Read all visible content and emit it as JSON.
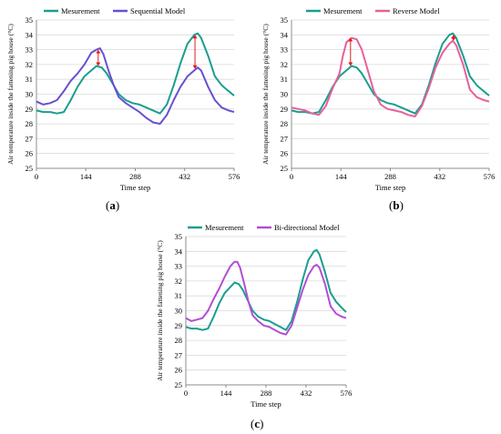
{
  "chart_data": [
    {
      "panel": "(a)",
      "type": "line",
      "ylabel": "Air temperature inside the fattening pig house (°C)",
      "xlabel": "Time step",
      "xticks": [
        0,
        144,
        288,
        432,
        576
      ],
      "yticks": [
        25,
        26,
        27,
        28,
        29,
        30,
        31,
        32,
        33,
        34,
        35
      ],
      "xlim": [
        0,
        576
      ],
      "ylim": [
        25,
        35
      ],
      "grid": "horizontal",
      "legend_position": "top",
      "series": [
        {
          "name": "Mesurement",
          "color": "#1a9e8f",
          "x": [
            0,
            20,
            40,
            60,
            80,
            100,
            120,
            140,
            160,
            175,
            190,
            205,
            220,
            240,
            260,
            280,
            300,
            320,
            340,
            360,
            380,
            400,
            420,
            440,
            460,
            470,
            480,
            500,
            520,
            540,
            560,
            576
          ],
          "y": [
            28.9,
            28.8,
            28.8,
            28.7,
            28.8,
            29.6,
            30.5,
            31.2,
            31.6,
            31.9,
            31.8,
            31.4,
            30.8,
            30.0,
            29.6,
            29.4,
            29.3,
            29.1,
            28.9,
            28.7,
            29.3,
            30.6,
            32.1,
            33.4,
            34.0,
            34.1,
            33.8,
            32.6,
            31.2,
            30.6,
            30.2,
            29.9
          ]
        },
        {
          "name": "Sequential Model",
          "color": "#6a4fd1",
          "x": [
            0,
            20,
            40,
            60,
            80,
            100,
            120,
            140,
            160,
            175,
            185,
            195,
            210,
            225,
            240,
            260,
            280,
            300,
            320,
            340,
            360,
            380,
            400,
            420,
            440,
            460,
            470,
            480,
            500,
            520,
            540,
            560,
            576
          ],
          "y": [
            29.5,
            29.3,
            29.4,
            29.6,
            30.2,
            30.9,
            31.4,
            32.0,
            32.8,
            33.0,
            33.1,
            32.7,
            31.6,
            30.6,
            29.8,
            29.4,
            29.1,
            28.8,
            28.4,
            28.1,
            28.0,
            28.6,
            29.6,
            30.5,
            31.2,
            31.6,
            31.8,
            31.6,
            30.5,
            29.6,
            29.1,
            28.9,
            28.8
          ]
        }
      ]
    },
    {
      "panel": "(b)",
      "type": "line",
      "ylabel": "Air temperature inside the fattening pig house (°C)",
      "xlabel": "Time step",
      "xticks": [
        0,
        144,
        288,
        432,
        576
      ],
      "yticks": [
        25,
        26,
        27,
        28,
        29,
        30,
        31,
        32,
        33,
        34,
        35
      ],
      "xlim": [
        0,
        576
      ],
      "ylim": [
        25,
        35
      ],
      "grid": "horizontal",
      "legend_position": "top",
      "series": [
        {
          "name": "Mesurement",
          "color": "#1a9e8f",
          "x": [
            0,
            20,
            40,
            60,
            80,
            100,
            120,
            140,
            160,
            175,
            190,
            205,
            220,
            240,
            260,
            280,
            300,
            320,
            340,
            360,
            380,
            400,
            420,
            440,
            460,
            470,
            480,
            500,
            520,
            540,
            560,
            576
          ],
          "y": [
            28.9,
            28.8,
            28.8,
            28.7,
            28.8,
            29.6,
            30.5,
            31.2,
            31.6,
            31.9,
            31.8,
            31.4,
            30.8,
            30.0,
            29.6,
            29.4,
            29.3,
            29.1,
            28.9,
            28.7,
            29.3,
            30.6,
            32.1,
            33.4,
            34.0,
            34.1,
            33.8,
            32.6,
            31.2,
            30.6,
            30.2,
            29.9
          ]
        },
        {
          "name": "Reverse Model",
          "color": "#e8609a",
          "x": [
            0,
            20,
            40,
            60,
            80,
            100,
            120,
            140,
            150,
            160,
            175,
            190,
            205,
            220,
            240,
            260,
            280,
            300,
            320,
            340,
            360,
            380,
            400,
            420,
            440,
            460,
            470,
            480,
            500,
            520,
            540,
            560,
            576
          ],
          "y": [
            29.1,
            29.0,
            28.9,
            28.7,
            28.6,
            29.2,
            30.4,
            31.4,
            32.6,
            33.5,
            33.8,
            33.7,
            33.0,
            31.8,
            30.2,
            29.3,
            29.0,
            28.9,
            28.8,
            28.6,
            28.5,
            29.2,
            30.4,
            31.8,
            32.8,
            33.4,
            33.6,
            33.3,
            32.0,
            30.3,
            29.8,
            29.6,
            29.5
          ]
        }
      ]
    },
    {
      "panel": "(c)",
      "type": "line",
      "ylabel": "Air temperature inside the fattening pig house (°C)",
      "xlabel": "Time step",
      "xticks": [
        0,
        144,
        288,
        432,
        576
      ],
      "yticks": [
        25,
        26,
        27,
        28,
        29,
        30,
        31,
        32,
        33,
        34,
        35
      ],
      "xlim": [
        0,
        576
      ],
      "ylim": [
        25,
        35
      ],
      "grid": "horizontal",
      "legend_position": "top",
      "series": [
        {
          "name": "Mesurement",
          "color": "#1a9e8f",
          "x": [
            0,
            20,
            40,
            60,
            80,
            100,
            120,
            140,
            160,
            175,
            190,
            205,
            220,
            240,
            260,
            280,
            300,
            320,
            340,
            360,
            380,
            400,
            420,
            440,
            460,
            470,
            480,
            500,
            520,
            540,
            560,
            576
          ],
          "y": [
            28.9,
            28.8,
            28.8,
            28.7,
            28.8,
            29.6,
            30.5,
            31.2,
            31.6,
            31.9,
            31.8,
            31.4,
            30.8,
            30.0,
            29.6,
            29.4,
            29.3,
            29.1,
            28.9,
            28.7,
            29.3,
            30.6,
            32.1,
            33.4,
            34.0,
            34.1,
            33.8,
            32.6,
            31.2,
            30.6,
            30.2,
            29.9
          ]
        },
        {
          "name": "Bi-directional Model",
          "color": "#b04fd6",
          "x": [
            0,
            20,
            40,
            60,
            80,
            100,
            120,
            140,
            160,
            175,
            185,
            195,
            210,
            225,
            240,
            260,
            280,
            300,
            320,
            340,
            360,
            380,
            400,
            420,
            440,
            460,
            470,
            480,
            500,
            520,
            540,
            560,
            576
          ],
          "y": [
            29.5,
            29.3,
            29.4,
            29.5,
            30.0,
            30.8,
            31.5,
            32.3,
            33.0,
            33.3,
            33.3,
            32.9,
            31.8,
            30.6,
            29.7,
            29.3,
            29.0,
            28.9,
            28.7,
            28.5,
            28.4,
            29.0,
            30.2,
            31.4,
            32.4,
            33.0,
            33.1,
            32.9,
            31.8,
            30.3,
            29.8,
            29.6,
            29.5
          ]
        }
      ]
    }
  ],
  "panel_labels": [
    "a",
    "b",
    "c"
  ],
  "annotations": {
    "arrow_color": "#e01b1b"
  }
}
